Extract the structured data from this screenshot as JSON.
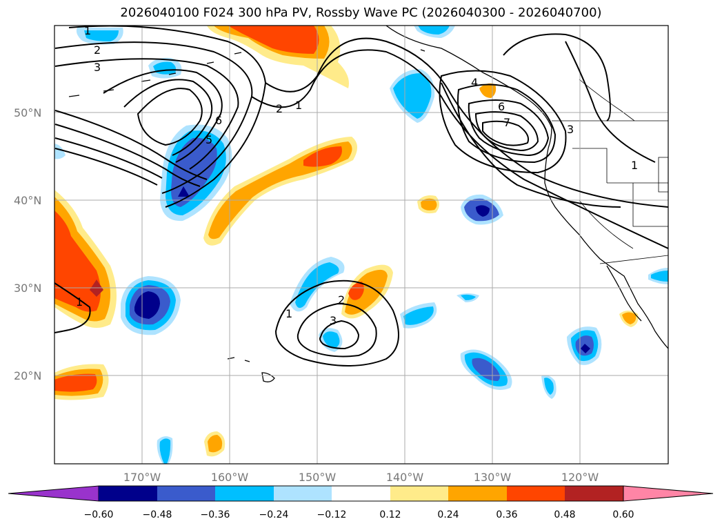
{
  "title": "2026040100 F024 300 hPa PV, Rossby Wave PC (2026040300 - 2026040700)",
  "axes": {
    "lat_labels": [
      "50°N",
      "40°N",
      "30°N",
      "20°N"
    ],
    "lon_labels": [
      "170°W",
      "160°W",
      "150°W",
      "140°W",
      "130°W",
      "120°W"
    ]
  },
  "colorbar": {
    "tick_labels": [
      "−0.60",
      "−0.48",
      "−0.36",
      "−0.24",
      "−0.12",
      "0.12",
      "0.24",
      "0.36",
      "0.48",
      "0.60"
    ],
    "colors": [
      "#9933cc",
      "#00008b",
      "#3a5bcc",
      "#00bfff",
      "#aee3ff",
      "#ffffff",
      "#ffeb8a",
      "#ffa500",
      "#ff4500",
      "#b22222",
      "#ff85a6"
    ]
  },
  "contour_labels": [
    {
      "id": "c-1a",
      "text": "1"
    },
    {
      "id": "c-2a",
      "text": "2"
    },
    {
      "id": "c-3a",
      "text": "3"
    },
    {
      "id": "c-6a",
      "text": "6"
    },
    {
      "id": "c-5a",
      "text": "5"
    },
    {
      "id": "c-2b",
      "text": "2"
    },
    {
      "id": "c-1b",
      "text": "1"
    },
    {
      "id": "c-4a",
      "text": "4"
    },
    {
      "id": "c-6b",
      "text": "6"
    },
    {
      "id": "c-7a",
      "text": "7"
    },
    {
      "id": "c-3b",
      "text": "3"
    },
    {
      "id": "c-1c",
      "text": "1"
    },
    {
      "id": "c-1d",
      "text": "1"
    },
    {
      "id": "c-2c",
      "text": "2"
    },
    {
      "id": "c-3c",
      "text": "3"
    },
    {
      "id": "c-1e",
      "text": "1"
    }
  ]
}
